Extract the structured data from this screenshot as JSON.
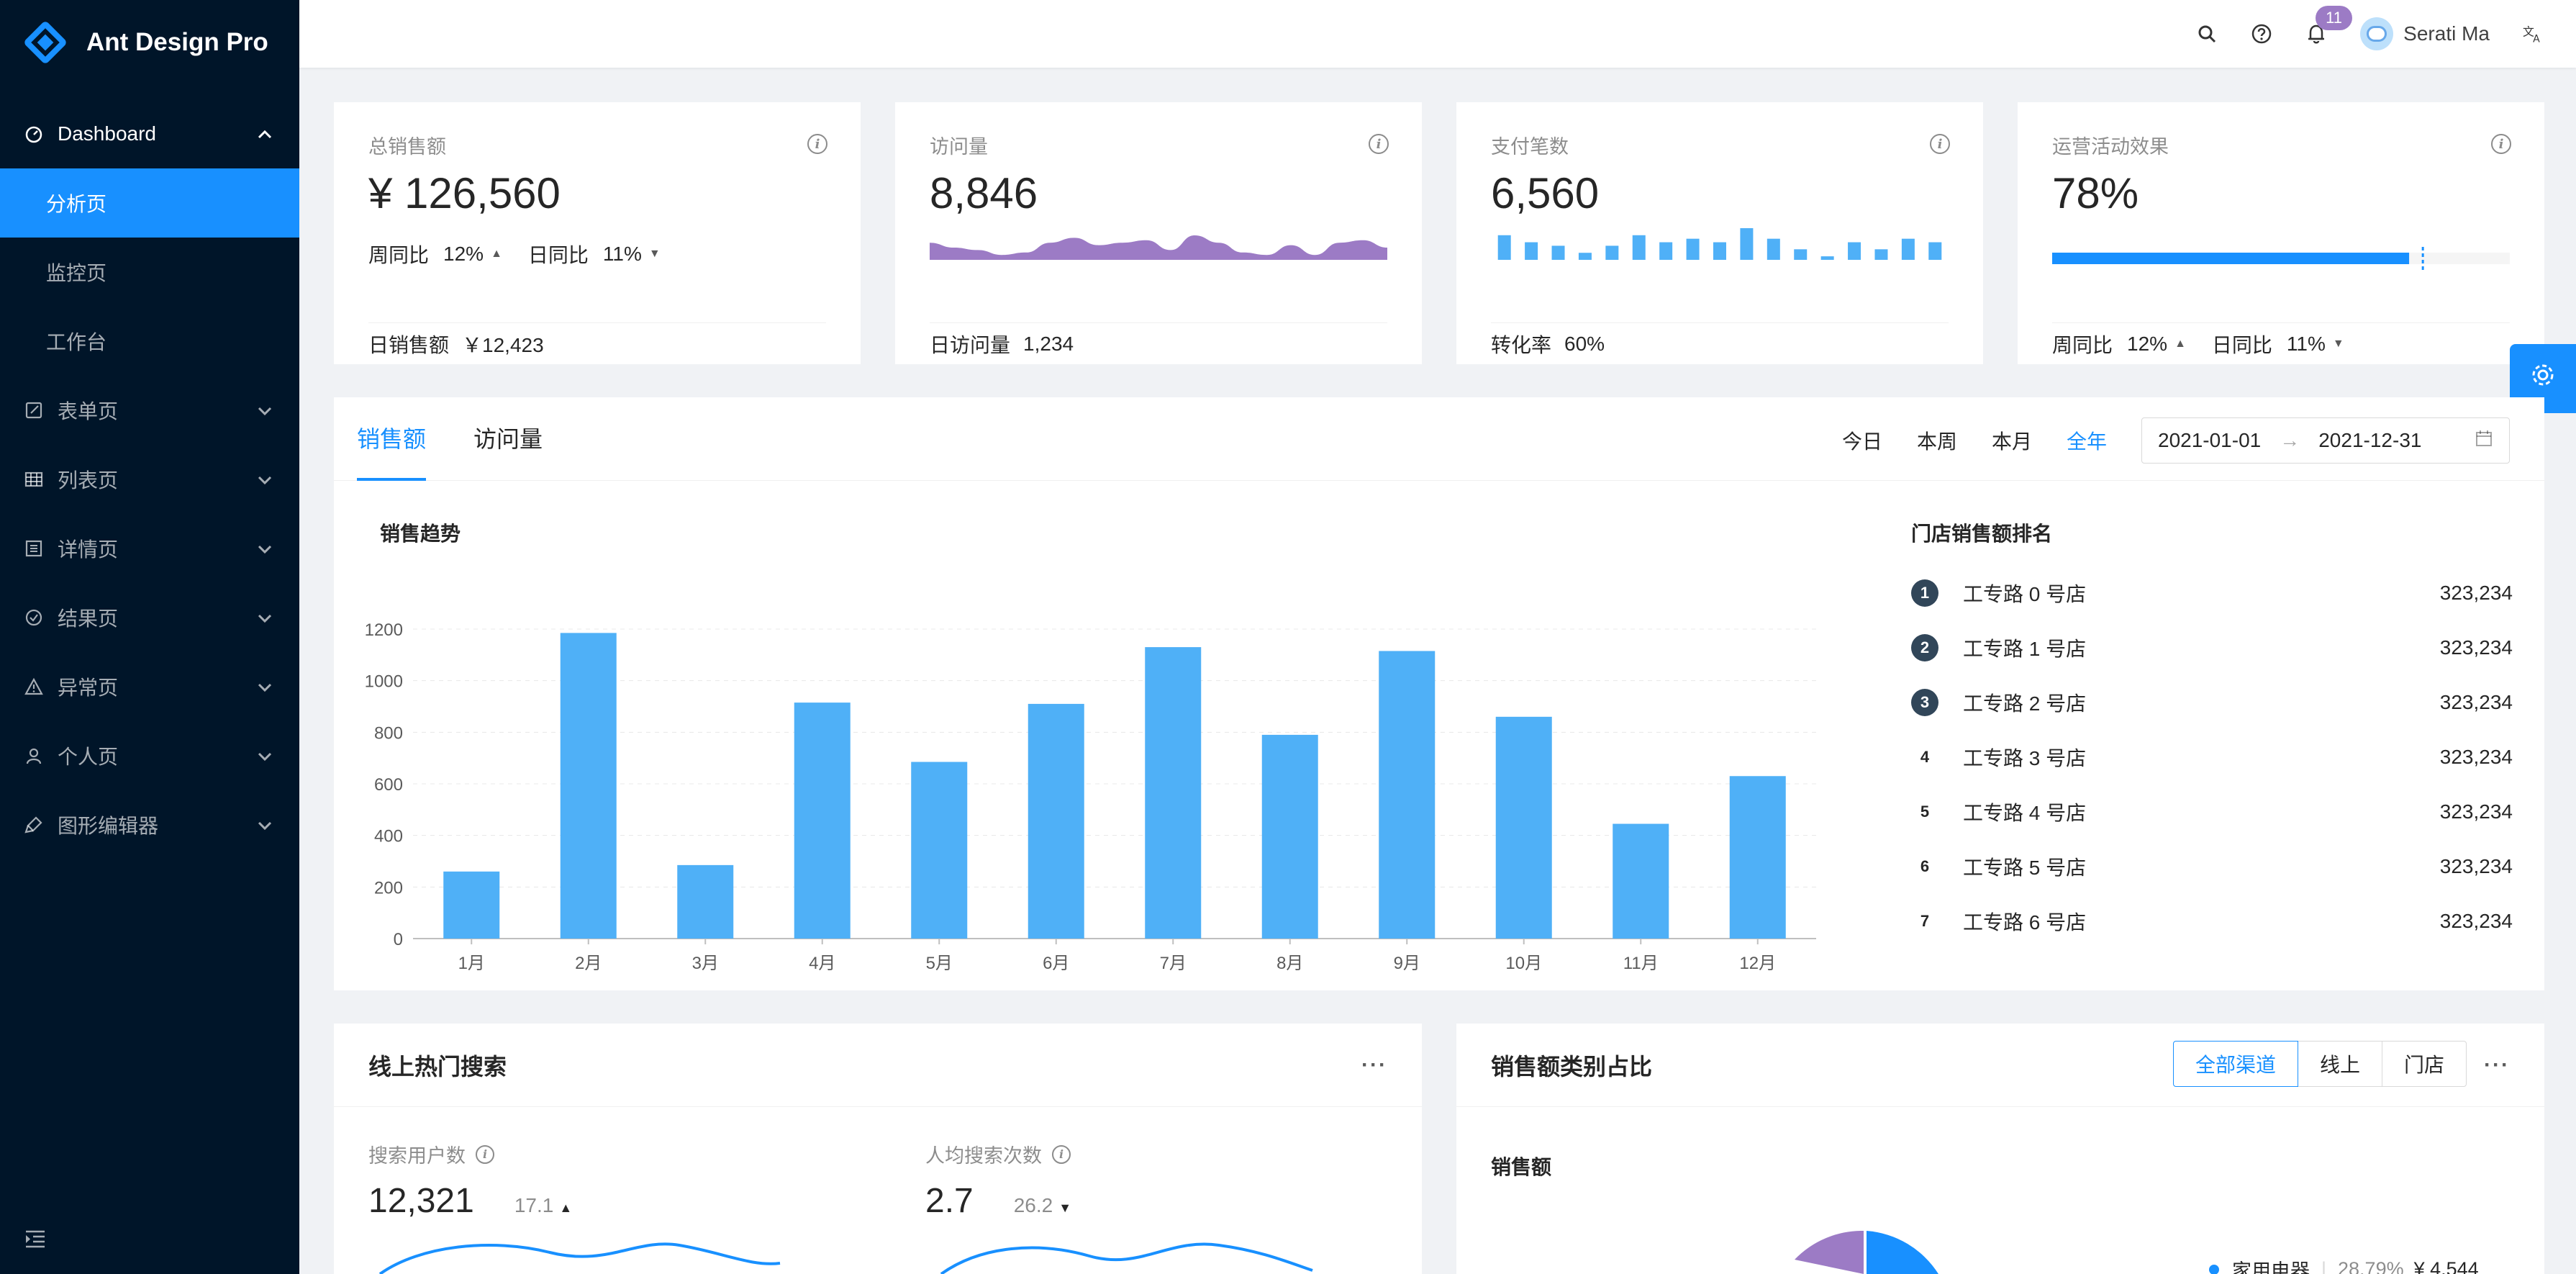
{
  "app": {
    "title": "Ant Design Pro"
  },
  "sidebar": {
    "dashboard_label": "Dashboard",
    "dashboard_children": [
      "分析页",
      "监控页",
      "工作台"
    ],
    "items": [
      {
        "label": "表单页",
        "icon": "form-icon"
      },
      {
        "label": "列表页",
        "icon": "table-icon"
      },
      {
        "label": "详情页",
        "icon": "profile-icon"
      },
      {
        "label": "结果页",
        "icon": "check-circle-icon"
      },
      {
        "label": "异常页",
        "icon": "warning-icon"
      },
      {
        "label": "个人页",
        "icon": "user-icon"
      },
      {
        "label": "图形编辑器",
        "icon": "highlight-icon"
      }
    ]
  },
  "header": {
    "notification_count": "11",
    "user_name": "Serati Ma"
  },
  "stats": {
    "sales": {
      "title": "总销售额",
      "value": "¥ 126,560",
      "week_label": "周同比",
      "week_value": "12%",
      "day_label": "日同比",
      "day_value": "11%",
      "footer_label": "日销售额",
      "footer_value": "￥12,423"
    },
    "visits": {
      "title": "访问量",
      "value": "8,846",
      "footer_label": "日访问量",
      "footer_value": "1,234"
    },
    "payments": {
      "title": "支付笔数",
      "value": "6,560",
      "footer_label": "转化率",
      "footer_value": "60%"
    },
    "operations": {
      "title": "运营活动效果",
      "value": "78%",
      "progress": 0.78,
      "week_label": "周同比",
      "week_value": "12%",
      "day_label": "日同比",
      "day_value": "11%"
    }
  },
  "sales_panel": {
    "tabs": [
      "销售额",
      "访问量"
    ],
    "ranges": [
      "今日",
      "本周",
      "本月",
      "全年"
    ],
    "date_start": "2021-01-01",
    "date_end": "2021-12-31",
    "chart_title": "销售趋势",
    "rank_title": "门店销售额排名",
    "ranking": [
      {
        "rank": "1",
        "name": "工专路 0 号店",
        "value": "323,234"
      },
      {
        "rank": "2",
        "name": "工专路 1 号店",
        "value": "323,234"
      },
      {
        "rank": "3",
        "name": "工专路 2 号店",
        "value": "323,234"
      },
      {
        "rank": "4",
        "name": "工专路 3 号店",
        "value": "323,234"
      },
      {
        "rank": "5",
        "name": "工专路 4 号店",
        "value": "323,234"
      },
      {
        "rank": "6",
        "name": "工专路 5 号店",
        "value": "323,234"
      },
      {
        "rank": "7",
        "name": "工专路 6 号店",
        "value": "323,234"
      }
    ]
  },
  "search_panel": {
    "title": "线上热门搜索",
    "users_label": "搜索用户数",
    "users_value": "12,321",
    "users_change": "17.1",
    "avg_label": "人均搜索次数",
    "avg_value": "2.7",
    "avg_change": "26.2"
  },
  "category_panel": {
    "title": "销售额类别占比",
    "buttons": [
      "全部渠道",
      "线上",
      "门店"
    ],
    "subtitle": "销售额",
    "legend_first": {
      "name": "家用电器",
      "percent": "28.79%",
      "value": "¥ 4,544"
    }
  },
  "colors": {
    "primary": "#1890ff",
    "purple": "#9c7bc5",
    "bar": "#4fb0f7",
    "sider": "#001529"
  },
  "chart_data": {
    "type": "bar",
    "title": "销售趋势",
    "categories": [
      "1月",
      "2月",
      "3月",
      "4月",
      "5月",
      "6月",
      "7月",
      "8月",
      "9月",
      "10月",
      "11月",
      "12月"
    ],
    "values": [
      260,
      1185,
      285,
      915,
      685,
      910,
      1130,
      790,
      1115,
      860,
      445,
      630
    ],
    "ylim": [
      0,
      1200
    ],
    "yticks": [
      0,
      200,
      400,
      600,
      800,
      1000,
      1200
    ],
    "grid": true,
    "color": "#4fb0f7"
  },
  "visits_chart_data": {
    "type": "area",
    "values": [
      7,
      5,
      4,
      2,
      3,
      7,
      9,
      6,
      7,
      8,
      4,
      10,
      7,
      3,
      2,
      6,
      2,
      7,
      8,
      5
    ],
    "color": "#9c7bc5"
  },
  "payments_chart_data": {
    "type": "bar",
    "values": [
      7,
      5,
      4,
      2,
      4,
      7,
      5,
      6,
      5,
      9,
      6,
      3,
      1,
      5,
      3,
      6,
      5
    ],
    "color": "#4fb0f7"
  }
}
